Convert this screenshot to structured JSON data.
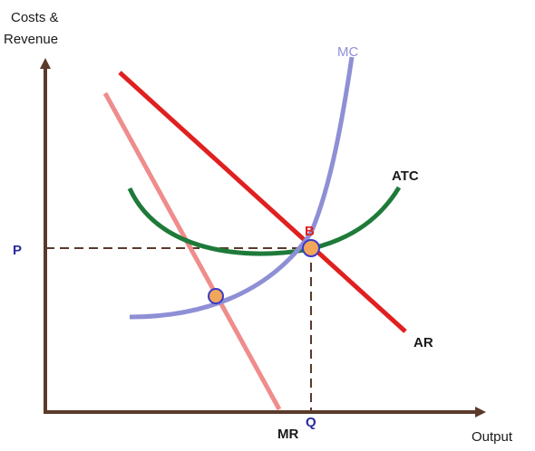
{
  "y_axis_label": [
    "Costs &",
    "Revenue"
  ],
  "x_axis_label": "Output",
  "curves": {
    "mc": "MC",
    "atc": "ATC",
    "ar": "AR",
    "mr": "MR"
  },
  "points": {
    "p": "P",
    "q": "Q",
    "b": "B"
  },
  "colors": {
    "axis": "#5a3a2a",
    "mc": "#8f8fd6",
    "atc": "#1f7a3a",
    "ar": "#e02020",
    "mr": "#f08c8c",
    "dashed": "#5a3a2a",
    "marker_fill": "#f2a65a",
    "marker_stroke": "#3a3ac8",
    "p_label": "#2a2aa0",
    "b_label": "#e02020"
  }
}
